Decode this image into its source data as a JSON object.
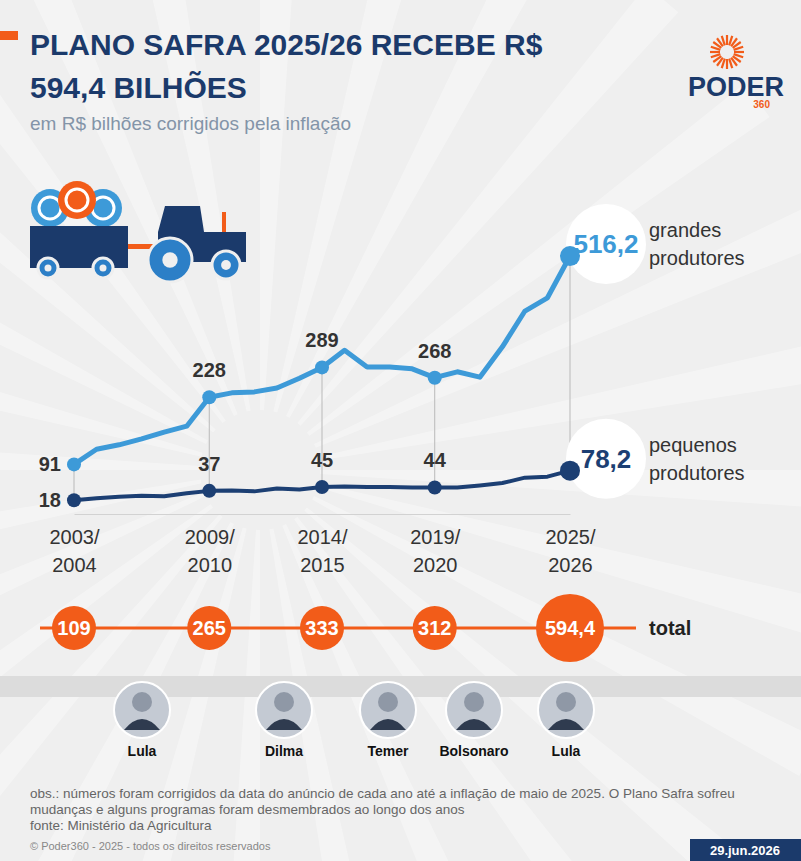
{
  "chart_data": {
    "type": "line",
    "title": "PLANO SAFRA 2025/26 RECEBE R$ 594,4 BILHÕES",
    "subtitle": "em R$ bilhões corrigidos pela inflação",
    "brand": {
      "name": "PODER",
      "sub": "360"
    },
    "categories": [
      "2003/2004",
      null,
      null,
      null,
      null,
      null,
      "2009/2010",
      null,
      null,
      null,
      null,
      "2014/2015",
      null,
      null,
      null,
      null,
      "2019/2020",
      null,
      null,
      null,
      null,
      null,
      "2025/2026"
    ],
    "series": [
      {
        "name": "grandes produtores",
        "color": "#3d9ad8",
        "marker": "circle",
        "values": [
          91,
          122,
          131,
          143,
          157,
          169,
          228,
          237,
          239,
          247,
          267,
          289,
          324,
          290,
          290,
          286,
          268,
          280,
          269,
          331,
          404,
          431,
          516.2
        ],
        "value_labels": [
          "91",
          null,
          null,
          null,
          null,
          null,
          "228",
          null,
          null,
          null,
          null,
          "289",
          null,
          null,
          null,
          null,
          "268",
          null,
          null,
          null,
          null,
          null,
          "516,2"
        ]
      },
      {
        "name": "pequenos produtores",
        "color": "#1c3f73",
        "marker": "circle",
        "values": [
          18,
          22,
          25,
          27,
          26,
          32,
          37,
          38,
          36,
          42,
          40,
          45,
          46,
          45,
          45,
          44,
          44,
          44,
          48,
          53,
          64,
          66,
          78.2
        ],
        "value_labels": [
          "18",
          null,
          null,
          null,
          null,
          null,
          "37",
          null,
          null,
          null,
          null,
          "45",
          null,
          null,
          null,
          null,
          "44",
          null,
          null,
          null,
          null,
          null,
          "78,2"
        ]
      }
    ],
    "ylim": [
      0,
      560
    ],
    "tick_labels": "x",
    "grid": false,
    "totals": {
      "name": "total",
      "color": "#f25c19",
      "values": [
        109,
        null,
        null,
        null,
        null,
        null,
        265,
        null,
        null,
        null,
        null,
        333,
        null,
        null,
        null,
        null,
        312,
        null,
        null,
        null,
        null,
        null,
        594.4
      ],
      "value_labels": [
        "109",
        null,
        null,
        null,
        null,
        null,
        "265",
        null,
        null,
        null,
        null,
        "333",
        null,
        null,
        null,
        null,
        "312",
        null,
        null,
        null,
        null,
        null,
        "594,4"
      ]
    },
    "presidents": [
      "Lula",
      "Dilma",
      "Temer",
      "Bolsonaro",
      "Lula"
    ],
    "note": "obs.: números foram corrigidos da data do anúncio de cada ano até a inflação de maio de 2025. O Plano Safra sofreu mudanças e alguns programas foram desmembrados ao longo dos anos",
    "source": "fonte: Ministério da Agricultura",
    "copyright": "© Poder360 - 2025 - todos os direitos reservados",
    "date": "29.jun.2026"
  }
}
